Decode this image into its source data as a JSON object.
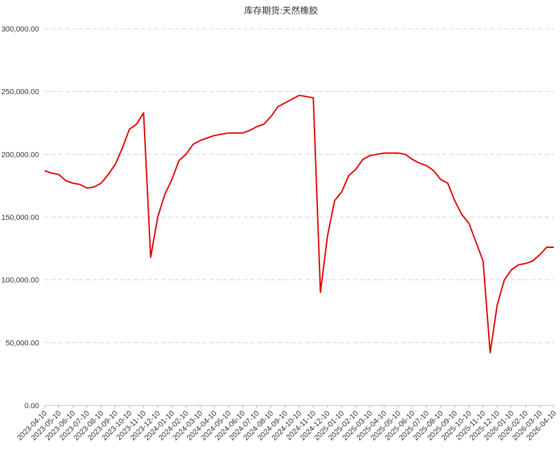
{
  "chart_data": {
    "type": "line",
    "title": "库存期货:天然橡胶",
    "categories": [
      "2023-04-10",
      null,
      "2023-05-10",
      null,
      "2023-06-10",
      null,
      "2023-07-10",
      null,
      "2023-08-10",
      null,
      "2023-09-10",
      null,
      "2023-10-10",
      null,
      "2023-11-10",
      null,
      "2023-12-10",
      null,
      "2024-01-10",
      null,
      "2024-02-10",
      null,
      "2024-03-10",
      null,
      "2024-04-10",
      null,
      "2024-05-10",
      null,
      "2024-06-10",
      null,
      "2024-07-10",
      null,
      "2024-08-10",
      null,
      "2024-09-10",
      null,
      "2024-10-10",
      null,
      "2024-11-10",
      null,
      "2024-12-10",
      null,
      "2025-01-10",
      null,
      "2025-02-10",
      null,
      "2025-03-10",
      null,
      "2025-04-10",
      null,
      "2025-05-10",
      null,
      "2025-06-10",
      null,
      "2025-07-10",
      null,
      "2025-08-10",
      null,
      "2025-09-10",
      null,
      "2025-10-10",
      null,
      "2025-11-10",
      null,
      "2025-12-10",
      null,
      "2026-01-10",
      null,
      "2026-02-10",
      null,
      "2026-03-10",
      null,
      "2026-04-10"
    ],
    "series": [
      {
        "name": "库存期货:天然橡胶",
        "color": "#e00000",
        "values": [
          187000,
          185000,
          184000,
          179000,
          177000,
          176000,
          173000,
          174000,
          177000,
          184000,
          192000,
          205000,
          220000,
          224000,
          233000,
          118000,
          150000,
          168000,
          180000,
          195000,
          200000,
          208000,
          211000,
          213000,
          215000,
          216000,
          217000,
          217000,
          217000,
          219000,
          222000,
          224000,
          230000,
          238000,
          241000,
          244000,
          247000,
          246000,
          245000,
          90000,
          135000,
          163000,
          170000,
          183000,
          188000,
          196000,
          199000,
          200000,
          201000,
          201000,
          201000,
          200000,
          196000,
          193000,
          191000,
          187000,
          180000,
          177000,
          163000,
          152000,
          145000,
          130000,
          115000,
          42000,
          80000,
          100000,
          108000,
          112000,
          113000,
          115000,
          120000,
          126000,
          126000
        ]
      }
    ],
    "ylim": [
      0,
      300000
    ],
    "yticks": [
      {
        "value": 0,
        "label": "0.00"
      },
      {
        "value": 50000,
        "label": "50,000.00"
      },
      {
        "value": 100000,
        "label": "100,000.00"
      },
      {
        "value": 150000,
        "label": "150,000.00"
      },
      {
        "value": 200000,
        "label": "200,000.00"
      },
      {
        "value": 250000,
        "label": "250,000.00"
      },
      {
        "value": 300000,
        "label": "300,000.00"
      }
    ],
    "grid": true
  }
}
